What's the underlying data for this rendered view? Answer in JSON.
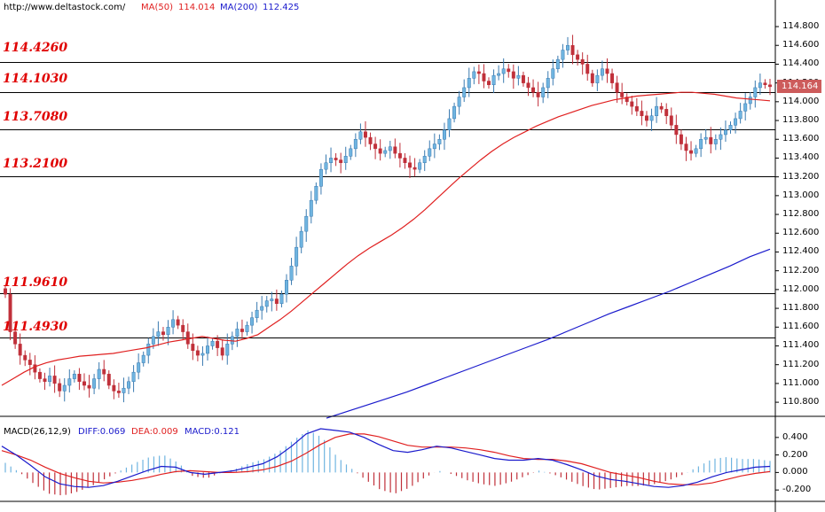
{
  "header": {
    "site": "http://www.deltastock.com/",
    "ma50_label": "MA(50)",
    "ma50_value": "114.014",
    "ma200_label": "MA(200)",
    "ma200_value": "112.425"
  },
  "levels": [
    "114.4260",
    "114.1030",
    "113.7080",
    "113.2100",
    "111.9610",
    "111.4930"
  ],
  "current_price": "114.164",
  "macd_header": {
    "label": "MACD(26,12,9)",
    "diff": "DIFF:0.069",
    "dea": "DEA:0.009",
    "macd": "MACD:0.121"
  },
  "colors": {
    "up": "#6fb4e0",
    "down": "#c0303a",
    "ma50": "#e02020",
    "ma200": "#1a1acc",
    "diff": "#1a1acc",
    "dea": "#e02020",
    "level_text": "#e00000",
    "current_box": "#cd5c5c"
  },
  "chart_data": [
    {
      "type": "candlestick",
      "title": "",
      "yticks": [
        "114.800",
        "114.600",
        "114.400",
        "114.200",
        "114.000",
        "113.800",
        "113.600",
        "113.400",
        "113.200",
        "113.000",
        "112.800",
        "112.600",
        "112.400",
        "112.200",
        "112.000",
        "111.800",
        "111.600",
        "111.400",
        "111.200",
        "111.000",
        "110.800"
      ],
      "ylim": [
        110.65,
        114.97
      ],
      "horizontal_levels": [
        114.426,
        114.103,
        113.708,
        113.21,
        111.961,
        111.493
      ],
      "close_series": [
        111.95,
        111.55,
        111.42,
        111.3,
        111.25,
        111.2,
        111.12,
        111.05,
        111.02,
        111.08,
        111.0,
        110.92,
        110.98,
        111.05,
        111.1,
        111.02,
        110.98,
        110.95,
        111.05,
        111.15,
        111.1,
        110.98,
        110.92,
        110.9,
        110.95,
        111.02,
        111.12,
        111.22,
        111.3,
        111.42,
        111.5,
        111.55,
        111.52,
        111.6,
        111.68,
        111.62,
        111.55,
        111.42,
        111.35,
        111.3,
        111.32,
        111.4,
        111.45,
        111.38,
        111.3,
        111.42,
        111.5,
        111.58,
        111.55,
        111.62,
        111.7,
        111.78,
        111.82,
        111.88,
        111.9,
        111.85,
        111.95,
        112.1,
        112.25,
        112.45,
        112.62,
        112.78,
        112.95,
        113.1,
        113.28,
        113.35,
        113.4,
        113.38,
        113.35,
        113.42,
        113.5,
        113.6,
        113.68,
        113.62,
        113.55,
        113.5,
        113.45,
        113.48,
        113.52,
        113.45,
        113.4,
        113.35,
        113.3,
        113.28,
        113.35,
        113.42,
        113.5,
        113.55,
        113.6,
        113.7,
        113.82,
        113.95,
        114.05,
        114.15,
        114.25,
        114.32,
        114.3,
        114.22,
        114.18,
        114.28,
        114.3,
        114.35,
        114.32,
        114.25,
        114.28,
        114.2,
        114.15,
        114.1,
        114.05,
        114.15,
        114.25,
        114.35,
        114.45,
        114.55,
        114.6,
        114.5,
        114.45,
        114.4,
        114.3,
        114.2,
        114.28,
        114.35,
        114.3,
        114.2,
        114.1,
        114.05,
        114.0,
        113.95,
        113.9,
        113.85,
        113.8,
        113.85,
        113.95,
        113.92,
        113.85,
        113.75,
        113.65,
        113.55,
        113.48,
        113.45,
        113.5,
        113.6,
        113.62,
        113.55,
        113.6,
        113.65,
        113.7,
        113.75,
        113.82,
        113.9,
        113.98,
        114.05,
        114.15,
        114.2,
        114.18,
        114.16
      ],
      "series": [
        {
          "name": "MA(50)",
          "values": [
            110.98,
            111.05,
            111.12,
            111.18,
            111.22,
            111.25,
            111.27,
            111.29,
            111.3,
            111.31,
            111.32,
            111.34,
            111.36,
            111.38,
            111.41,
            111.44,
            111.46,
            111.48,
            111.5,
            111.48,
            111.46,
            111.45,
            111.48,
            111.52,
            111.6,
            111.68,
            111.77,
            111.87,
            111.97,
            112.07,
            112.17,
            112.27,
            112.36,
            112.44,
            112.51,
            112.58,
            112.66,
            112.75,
            112.85,
            112.96,
            113.07,
            113.18,
            113.28,
            113.38,
            113.47,
            113.55,
            113.62,
            113.68,
            113.74,
            113.79,
            113.84,
            113.88,
            113.92,
            113.96,
            113.99,
            114.02,
            114.04,
            114.06,
            114.07,
            114.08,
            114.09,
            114.1,
            114.1,
            114.09,
            114.08,
            114.06,
            114.04,
            114.03,
            114.02,
            114.01
          ]
        },
        {
          "name": "MA(200)",
          "values": [
            110.63,
            110.7,
            110.77,
            110.84,
            110.91,
            110.99,
            111.07,
            111.15,
            111.23,
            111.31,
            111.39,
            111.47,
            111.56,
            111.65,
            111.74,
            111.82,
            111.9,
            111.98,
            112.07,
            112.16,
            112.25,
            112.35,
            112.43
          ]
        }
      ]
    },
    {
      "type": "bar",
      "title": "",
      "yticks": [
        "0.400",
        "0.200",
        "0.000",
        "-0.200"
      ],
      "ylim": [
        -0.33,
        0.54
      ],
      "series": [
        {
          "name": "DIFF",
          "values": [
            0.3,
            0.2,
            0.08,
            -0.05,
            -0.13,
            -0.16,
            -0.17,
            -0.15,
            -0.1,
            -0.04,
            0.02,
            0.07,
            0.06,
            0.0,
            -0.02,
            0.0,
            0.02,
            0.06,
            0.1,
            0.18,
            0.3,
            0.44,
            0.5,
            0.48,
            0.46,
            0.4,
            0.32,
            0.25,
            0.23,
            0.26,
            0.3,
            0.28,
            0.24,
            0.2,
            0.16,
            0.14,
            0.14,
            0.16,
            0.14,
            0.09,
            0.03,
            -0.04,
            -0.08,
            -0.1,
            -0.13,
            -0.16,
            -0.17,
            -0.15,
            -0.11,
            -0.05,
            0.0,
            0.03,
            0.06,
            0.07
          ]
        },
        {
          "name": "DEA",
          "values": [
            0.25,
            0.2,
            0.14,
            0.06,
            -0.01,
            -0.06,
            -0.1,
            -0.12,
            -0.11,
            -0.09,
            -0.06,
            -0.02,
            0.01,
            0.02,
            0.01,
            0.0,
            0.0,
            0.01,
            0.03,
            0.07,
            0.13,
            0.22,
            0.32,
            0.4,
            0.44,
            0.44,
            0.41,
            0.36,
            0.31,
            0.29,
            0.29,
            0.29,
            0.28,
            0.26,
            0.23,
            0.19,
            0.16,
            0.15,
            0.15,
            0.13,
            0.1,
            0.05,
            0.0,
            -0.03,
            -0.06,
            -0.1,
            -0.13,
            -0.14,
            -0.14,
            -0.12,
            -0.08,
            -0.04,
            -0.01,
            0.01
          ]
        }
      ]
    }
  ]
}
